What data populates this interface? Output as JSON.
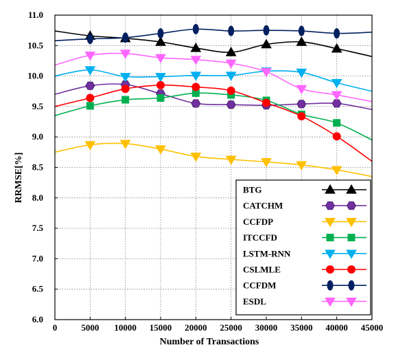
{
  "chart_data": {
    "type": "line",
    "title": "",
    "xlabel": "Number of Transactions",
    "ylabel": "RRMSE[%]",
    "xlim": [
      0,
      45000
    ],
    "ylim": [
      6.0,
      11.0
    ],
    "x_ticks": [
      0,
      5000,
      10000,
      15000,
      20000,
      25000,
      30000,
      35000,
      40000,
      45000
    ],
    "y_ticks": [
      6.0,
      6.5,
      7.0,
      7.5,
      8.0,
      8.5,
      9.0,
      9.5,
      10.0,
      10.5,
      11.0
    ],
    "x_tick_labels": [
      "0",
      "5000",
      "10000",
      "15000",
      "20000",
      "25000",
      "30000",
      "35000",
      "40000",
      "45000"
    ],
    "y_tick_labels": [
      "6.0",
      "6.5",
      "7.0",
      "7.5",
      "8.0",
      "8.5",
      "9.0",
      "9.5",
      "10.0",
      "10.5",
      "11.0"
    ],
    "grid": "dotted horizontal and vertical",
    "legend_position": "lower-right",
    "series": [
      {
        "name": "BTG",
        "color": "#000000",
        "marker": "triangle-up",
        "x": [
          0,
          5000,
          10000,
          15000,
          20000,
          25000,
          30000,
          35000,
          40000,
          45000
        ],
        "y": [
          10.74,
          10.66,
          10.62,
          10.56,
          10.46,
          10.39,
          10.52,
          10.56,
          10.45,
          10.32
        ],
        "marker_x": [
          5000,
          10000,
          15000,
          20000,
          25000,
          30000,
          35000,
          40000
        ]
      },
      {
        "name": "CATCHM",
        "color": "#7030A0",
        "marker": "hexagon",
        "x": [
          0,
          5000,
          10000,
          15000,
          20000,
          25000,
          30000,
          35000,
          40000,
          45000
        ],
        "y": [
          9.7,
          9.84,
          9.86,
          9.71,
          9.55,
          9.53,
          9.52,
          9.54,
          9.55,
          9.45
        ],
        "marker_x": [
          5000,
          10000,
          15000,
          20000,
          25000,
          30000,
          35000,
          40000
        ]
      },
      {
        "name": "CCFDP",
        "color": "#FFC000",
        "marker": "triangle-down",
        "x": [
          0,
          5000,
          10000,
          15000,
          20000,
          25000,
          30000,
          35000,
          40000,
          45000
        ],
        "y": [
          8.75,
          8.87,
          8.89,
          8.8,
          8.68,
          8.63,
          8.59,
          8.54,
          8.46,
          8.35
        ],
        "marker_x": [
          5000,
          10000,
          15000,
          20000,
          25000,
          30000,
          35000,
          40000
        ]
      },
      {
        "name": "ITCCFD",
        "color": "#00B050",
        "marker": "square",
        "x": [
          0,
          5000,
          10000,
          15000,
          20000,
          25000,
          30000,
          35000,
          40000,
          45000
        ],
        "y": [
          9.35,
          9.51,
          9.61,
          9.64,
          9.72,
          9.69,
          9.6,
          9.37,
          9.23,
          8.95
        ],
        "marker_x": [
          5000,
          10000,
          15000,
          20000,
          25000,
          30000,
          35000,
          40000
        ]
      },
      {
        "name": "LSTM-RNN",
        "color": "#00B0F0",
        "marker": "triangle-down",
        "x": [
          0,
          5000,
          10000,
          15000,
          20000,
          25000,
          30000,
          35000,
          40000,
          45000
        ],
        "y": [
          10.0,
          10.1,
          9.99,
          9.99,
          10.01,
          10.01,
          10.08,
          10.06,
          9.89,
          9.75
        ],
        "marker_x": [
          5000,
          10000,
          15000,
          20000,
          25000,
          30000,
          35000,
          40000
        ]
      },
      {
        "name": "CSLMLE",
        "color": "#FF0000",
        "marker": "circle",
        "x": [
          0,
          5000,
          10000,
          15000,
          20000,
          25000,
          30000,
          35000,
          40000,
          45000
        ],
        "y": [
          9.5,
          9.64,
          9.79,
          9.85,
          9.82,
          9.76,
          9.56,
          9.34,
          9.01,
          8.6
        ],
        "marker_x": [
          5000,
          10000,
          15000,
          20000,
          25000,
          30000,
          35000,
          40000
        ]
      },
      {
        "name": "CCFDM",
        "color": "#002060",
        "marker": "ellipse",
        "x": [
          0,
          5000,
          10000,
          15000,
          20000,
          25000,
          30000,
          35000,
          40000,
          45000
        ],
        "y": [
          10.58,
          10.61,
          10.63,
          10.7,
          10.77,
          10.74,
          10.75,
          10.74,
          10.7,
          10.72
        ],
        "marker_x": [
          5000,
          10000,
          15000,
          20000,
          25000,
          30000,
          35000,
          40000
        ]
      },
      {
        "name": "ESDL",
        "color": "#FF66FF",
        "marker": "triangle-down",
        "x": [
          0,
          5000,
          10000,
          15000,
          20000,
          25000,
          30000,
          35000,
          40000,
          45000
        ],
        "y": [
          10.18,
          10.34,
          10.37,
          10.3,
          10.27,
          10.21,
          10.07,
          9.79,
          9.69,
          9.58
        ],
        "marker_x": [
          5000,
          10000,
          15000,
          20000,
          25000,
          30000,
          35000,
          40000
        ]
      }
    ]
  }
}
